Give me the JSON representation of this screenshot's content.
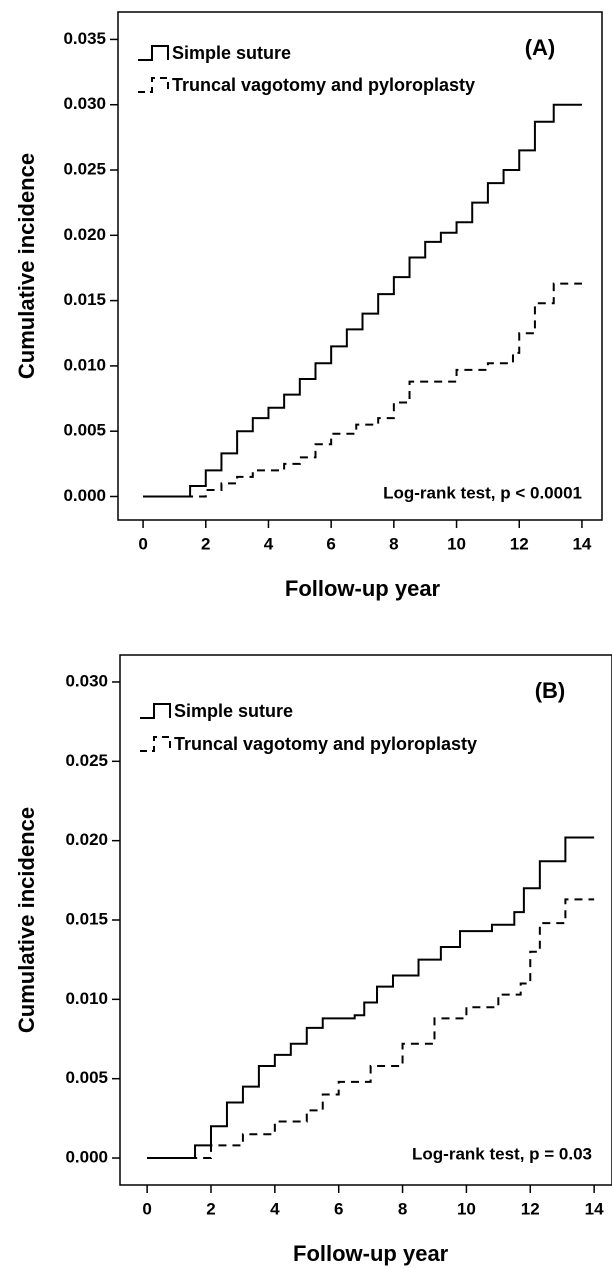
{
  "chart_data": [
    {
      "type": "line",
      "drawstyle": "steps-post",
      "xlabel": "Follow-up year",
      "ylabel": "Cumulative incidence",
      "annotations": [
        "(A)",
        "Log-rank test, p < 0.0001"
      ],
      "legend": "upper left",
      "xlim": [
        -0.8,
        14.64
      ],
      "ylim": [
        -0.0018,
        0.0371
      ],
      "xticks": [
        0,
        2,
        4,
        6,
        8,
        10,
        12,
        14
      ],
      "yticks": [
        {
          "value": 0,
          "label": "0.000"
        },
        0.005,
        {
          "value": 0.01,
          "label": "0.010"
        },
        0.015,
        {
          "value": 0.02,
          "label": "0.020"
        },
        0.025,
        {
          "value": 0.03,
          "label": "0.030"
        },
        0.035
      ],
      "series": [
        {
          "name": "Simple suture",
          "color": "#000000",
          "linestyle": "solid",
          "x": [
            0,
            1,
            1.5,
            2,
            2.5,
            3,
            3.5,
            4,
            4.5,
            5,
            5.5,
            6,
            6.5,
            7,
            7.5,
            8,
            8.5,
            9,
            9.5,
            10,
            10.5,
            11,
            11.5,
            12,
            12.5,
            13.1,
            14
          ],
          "values": [
            0,
            0,
            0.0008,
            0.002,
            0.0033,
            0.005,
            0.006,
            0.0068,
            0.0078,
            0.009,
            0.0102,
            0.0115,
            0.0128,
            0.014,
            0.0155,
            0.0168,
            0.0183,
            0.0195,
            0.0202,
            0.021,
            0.0225,
            0.024,
            0.025,
            0.0265,
            0.0287,
            0.03,
            0.03
          ]
        },
        {
          "name": "Truncal vagotomy and pyloroplasty",
          "color": "#000000",
          "linestyle": "dashed",
          "x": [
            0,
            1.5,
            2,
            2.5,
            3,
            3.5,
            4.5,
            5,
            5.5,
            6,
            6.8,
            7.5,
            8,
            8.5,
            9.5,
            10,
            11,
            11.8,
            12,
            12.5,
            13.1,
            14
          ],
          "values": [
            0,
            0,
            0.0005,
            0.001,
            0.0015,
            0.002,
            0.0025,
            0.003,
            0.004,
            0.0048,
            0.0055,
            0.006,
            0.0072,
            0.0088,
            0.0088,
            0.0097,
            0.0102,
            0.011,
            0.0125,
            0.0148,
            0.0163,
            0.0163
          ]
        }
      ]
    },
    {
      "type": "line",
      "drawstyle": "steps-post",
      "xlabel": "Follow-up year",
      "ylabel": "Cumulative incidence",
      "annotations": [
        "(B)",
        "Log-rank test, p = 0.03"
      ],
      "legend": "upper left",
      "xlim": [
        -0.85,
        14.56
      ],
      "ylim": [
        -0.0017,
        0.0317
      ],
      "xticks": [
        0,
        2,
        4,
        6,
        8,
        10,
        12,
        14
      ],
      "yticks": [
        {
          "value": 0,
          "label": "0.000"
        },
        0.005,
        {
          "value": 0.01,
          "label": "0.010"
        },
        0.015,
        {
          "value": 0.02,
          "label": "0.020"
        },
        0.025,
        {
          "value": 0.03,
          "label": "0.030"
        }
      ],
      "series": [
        {
          "name": "Simple suture",
          "color": "#000000",
          "linestyle": "solid",
          "x": [
            0,
            1.1,
            1.5,
            2,
            2.5,
            3,
            3.5,
            4,
            4.5,
            5,
            5.5,
            6.5,
            6.8,
            7.2,
            7.7,
            8.5,
            9.2,
            9.8,
            10.8,
            11.5,
            11.8,
            12.3,
            13.1,
            14
          ],
          "values": [
            0,
            0,
            0.0008,
            0.002,
            0.0035,
            0.0045,
            0.0058,
            0.0065,
            0.0072,
            0.0082,
            0.0088,
            0.009,
            0.0098,
            0.0108,
            0.0115,
            0.0125,
            0.0133,
            0.0143,
            0.0147,
            0.0155,
            0.017,
            0.0187,
            0.0202,
            0.0202
          ]
        },
        {
          "name": "Truncal vagotomy and pyloroplasty",
          "color": "#000000",
          "linestyle": "dashed",
          "x": [
            0,
            1.7,
            2,
            3,
            4,
            5,
            5.5,
            6,
            7,
            8,
            9,
            10,
            11,
            11.7,
            12,
            12.3,
            13.1,
            14
          ],
          "values": [
            0,
            0,
            0.0008,
            0.0015,
            0.0023,
            0.003,
            0.004,
            0.0048,
            0.0058,
            0.0072,
            0.0088,
            0.0095,
            0.0103,
            0.011,
            0.013,
            0.0148,
            0.0163,
            0.0163
          ]
        }
      ]
    }
  ]
}
